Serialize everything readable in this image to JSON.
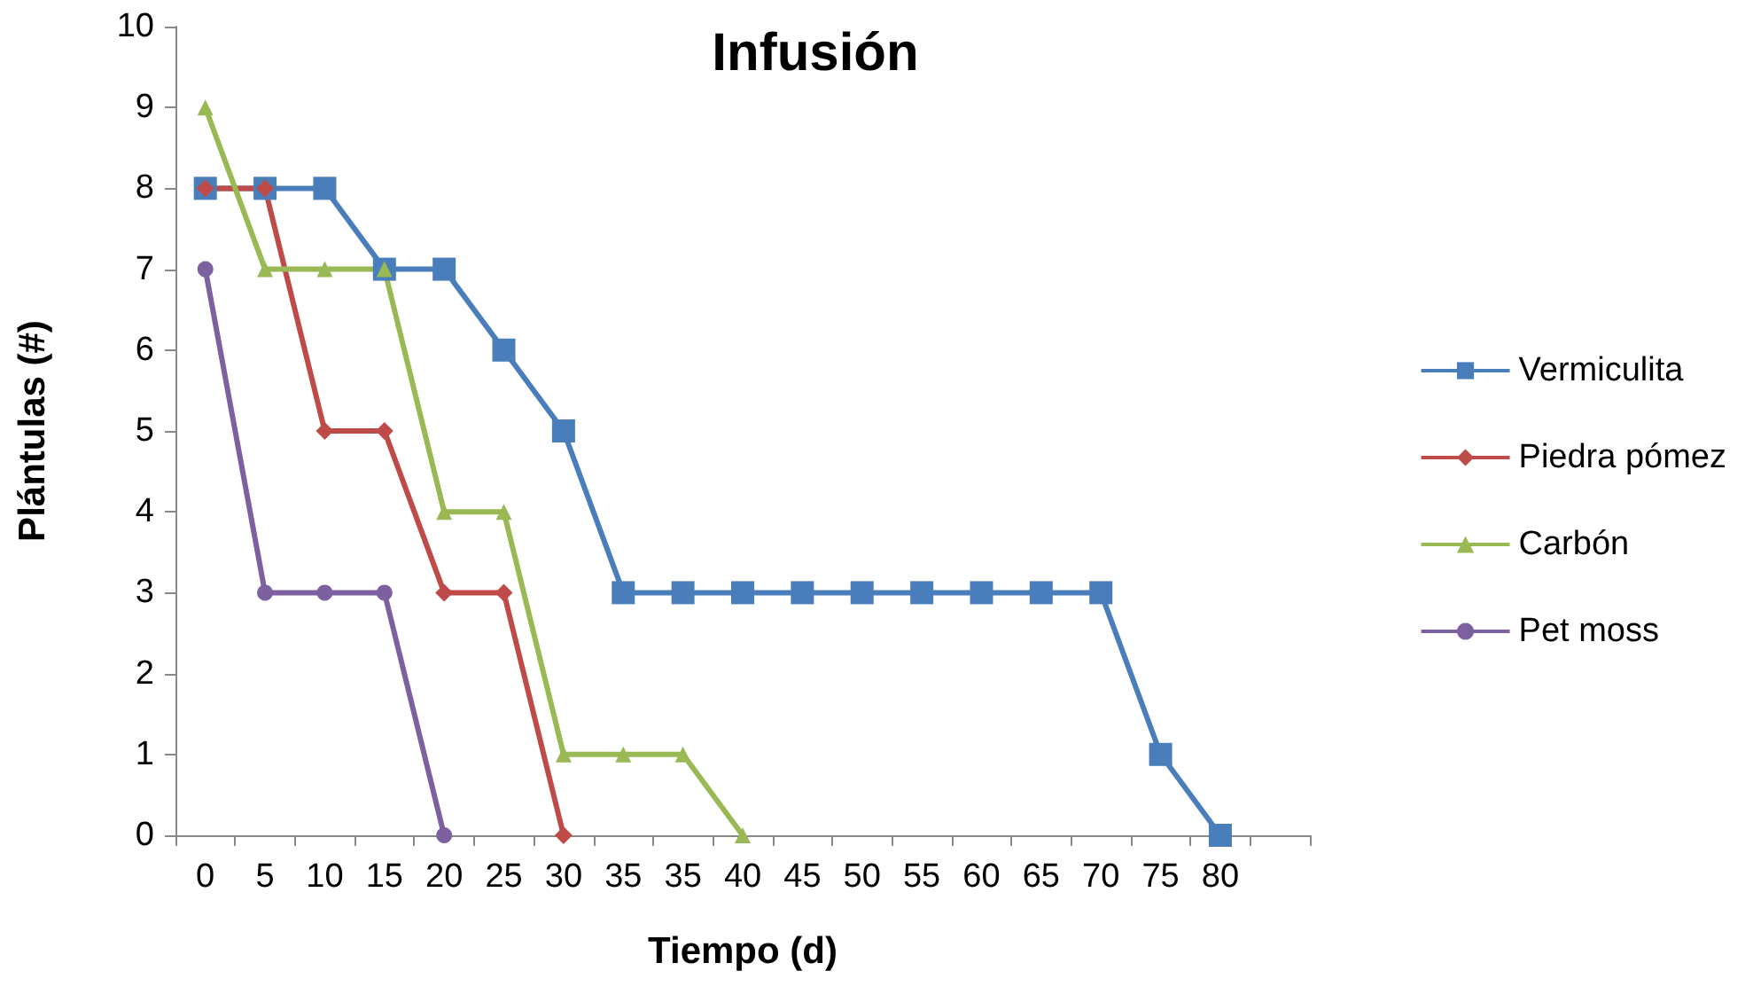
{
  "chart_data": {
    "type": "line",
    "title": "Infusión",
    "xlabel": "Tiempo (d)",
    "ylabel": "Plántulas (#)",
    "categories": [
      "0",
      "5",
      "10",
      "15",
      "20",
      "25",
      "30",
      "35",
      "35",
      "40",
      "45",
      "50",
      "55",
      "60",
      "65",
      "70",
      "75",
      "80",
      null
    ],
    "series": [
      {
        "name": "Vermiculita",
        "color": "#4a7ebb",
        "marker": "square",
        "values": [
          8,
          8,
          8,
          7,
          7,
          6,
          5,
          3,
          3,
          3,
          3,
          3,
          3,
          3,
          3,
          3,
          1,
          0,
          null
        ]
      },
      {
        "name": "Piedra pómez",
        "color": "#be4b48",
        "marker": "diamond",
        "values": [
          8,
          8,
          5,
          5,
          3,
          3,
          0,
          null,
          null,
          null,
          null,
          null,
          null,
          null,
          null,
          null,
          null,
          null,
          null
        ]
      },
      {
        "name": "Carbón",
        "color": "#98b954",
        "marker": "triangle",
        "values": [
          9,
          7,
          7,
          7,
          4,
          4,
          1,
          1,
          1,
          0,
          null,
          null,
          null,
          null,
          null,
          null,
          null,
          null,
          null
        ]
      },
      {
        "name": "Pet moss",
        "color": "#7d60a0",
        "marker": "circle",
        "values": [
          7,
          3,
          3,
          3,
          0,
          null,
          null,
          null,
          null,
          null,
          null,
          null,
          null,
          null,
          null,
          null,
          null,
          null,
          null
        ]
      }
    ],
    "ylim": [
      0,
      10
    ],
    "yticks": [
      0,
      1,
      2,
      3,
      4,
      5,
      6,
      7,
      8,
      9,
      10
    ],
    "grid": false,
    "legend": "right"
  }
}
